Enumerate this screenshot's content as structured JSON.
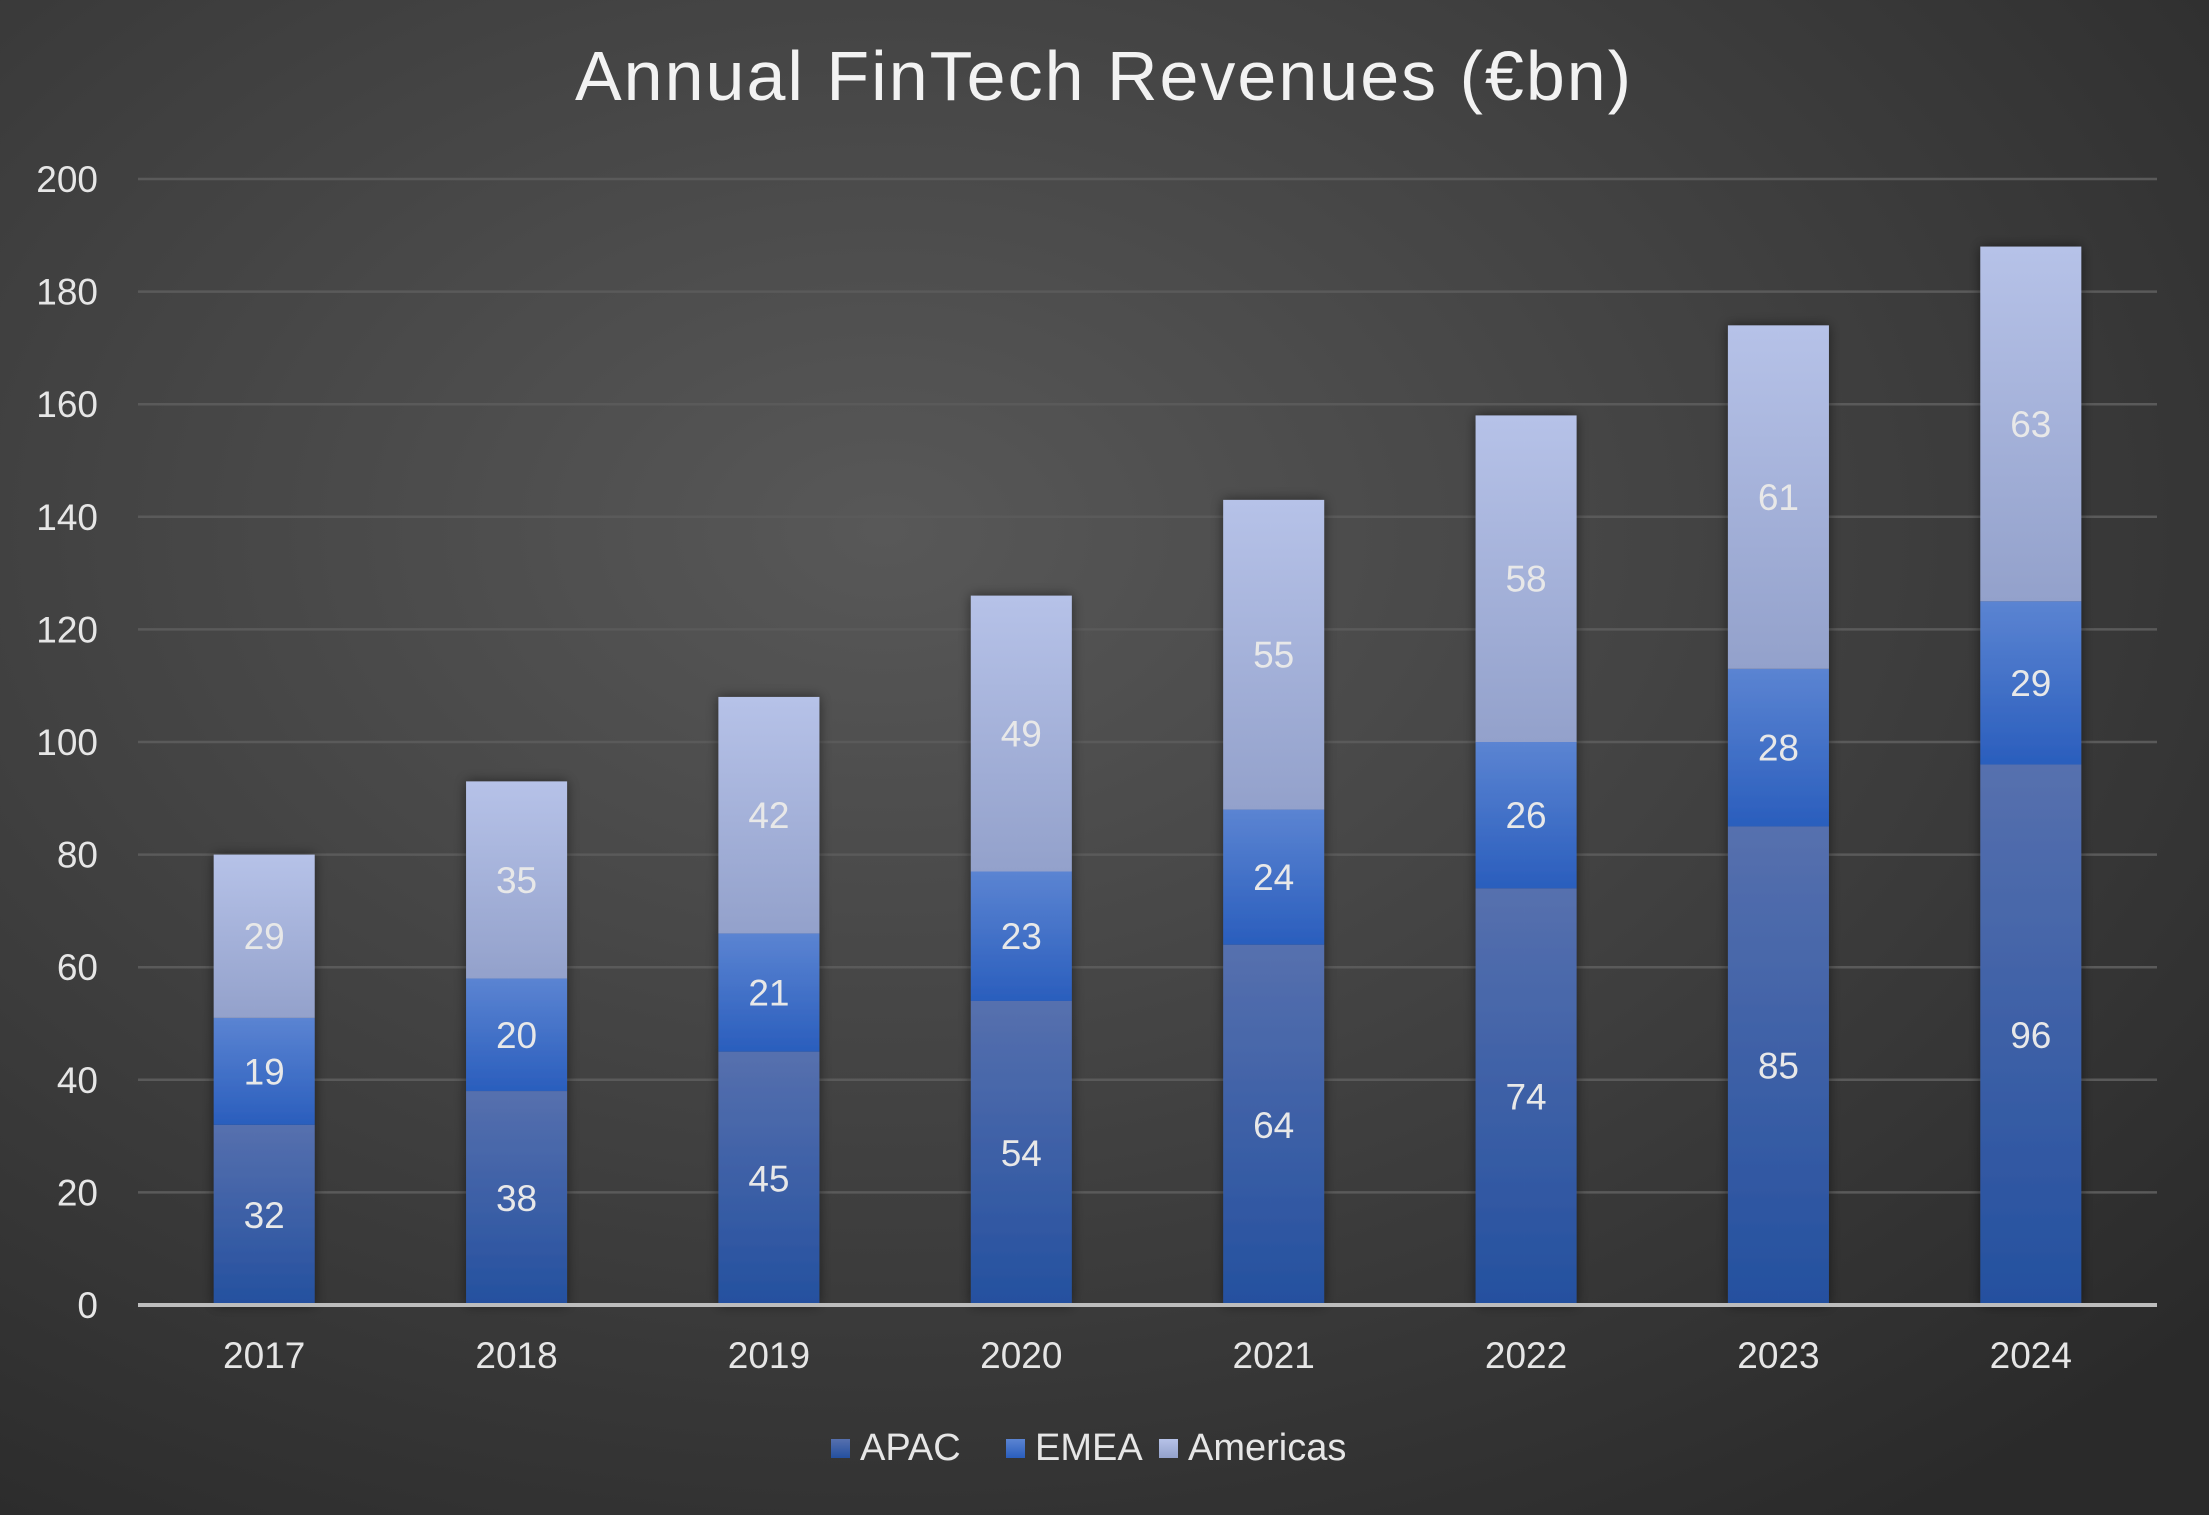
{
  "chart_data": {
    "type": "bar",
    "stacked": true,
    "title": "Annual FinTech Revenues (€bn)",
    "xlabel": "",
    "ylabel": "",
    "categories": [
      "2017",
      "2018",
      "2019",
      "2020",
      "2021",
      "2022",
      "2023",
      "2024"
    ],
    "series": [
      {
        "name": "APAC",
        "values": [
          32,
          38,
          45,
          54,
          64,
          74,
          85,
          96
        ],
        "color_top": "#5670ae",
        "color_bottom": "#24509f"
      },
      {
        "name": "EMEA",
        "values": [
          19,
          20,
          21,
          23,
          24,
          26,
          28,
          29
        ],
        "color_top": "#5b84d2",
        "color_bottom": "#2a5ebd"
      },
      {
        "name": "Americas",
        "values": [
          29,
          35,
          42,
          49,
          55,
          58,
          61,
          63
        ],
        "color_top": "#b6c2e8",
        "color_bottom": "#93a1cb"
      }
    ],
    "ylim": [
      0,
      200
    ],
    "yticks": [
      0,
      20,
      40,
      60,
      80,
      100,
      120,
      140,
      160,
      180,
      200
    ],
    "grid": true,
    "data_labels": true,
    "legend_position": "bottom",
    "background": "#2e2e2e",
    "text_color": "#e6e6e6"
  }
}
